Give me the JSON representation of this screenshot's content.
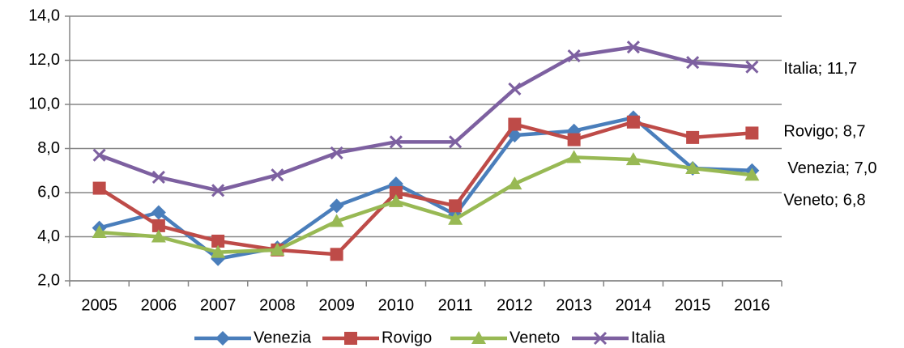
{
  "chart_data": {
    "type": "line",
    "categories": [
      "2005",
      "2006",
      "2007",
      "2008",
      "2009",
      "2010",
      "2011",
      "2012",
      "2013",
      "2014",
      "2015",
      "2016"
    ],
    "ylim": [
      2,
      14
    ],
    "yticks": [
      {
        "value": 2,
        "label": "2,0"
      },
      {
        "value": 4,
        "label": "4,0"
      },
      {
        "value": 6,
        "label": "6,0"
      },
      {
        "value": 8,
        "label": "8,0"
      },
      {
        "value": 10,
        "label": "10,0"
      },
      {
        "value": 12,
        "label": "12,0"
      },
      {
        "value": 14,
        "label": "14,0"
      }
    ],
    "grid": true,
    "legend": "bottom",
    "series": [
      {
        "name": "Venezia",
        "color": "#4a7ebb",
        "marker": "diamond",
        "values": [
          4.4,
          5.1,
          3.0,
          3.5,
          5.4,
          6.4,
          5.0,
          8.6,
          8.8,
          9.4,
          7.1,
          7.0
        ],
        "end_label": "Venezia; 7,0"
      },
      {
        "name": "Rovigo",
        "color": "#be4b48",
        "marker": "square",
        "values": [
          6.2,
          4.5,
          3.8,
          3.4,
          3.2,
          6.0,
          5.4,
          9.1,
          8.4,
          9.2,
          8.5,
          8.7
        ],
        "end_label": "Rovigo; 8,7"
      },
      {
        "name": "Veneto",
        "color": "#98b954",
        "marker": "triangle",
        "values": [
          4.2,
          4.0,
          3.3,
          3.4,
          4.7,
          5.6,
          4.8,
          6.4,
          7.6,
          7.5,
          7.1,
          6.8
        ],
        "end_label": "Veneto; 6,8"
      },
      {
        "name": "Italia",
        "color": "#7d60a0",
        "marker": "x",
        "values": [
          7.7,
          6.7,
          6.1,
          6.8,
          7.8,
          8.3,
          8.3,
          10.7,
          12.2,
          12.6,
          11.9,
          11.7
        ],
        "end_label": "Italia; 11,7"
      }
    ]
  }
}
